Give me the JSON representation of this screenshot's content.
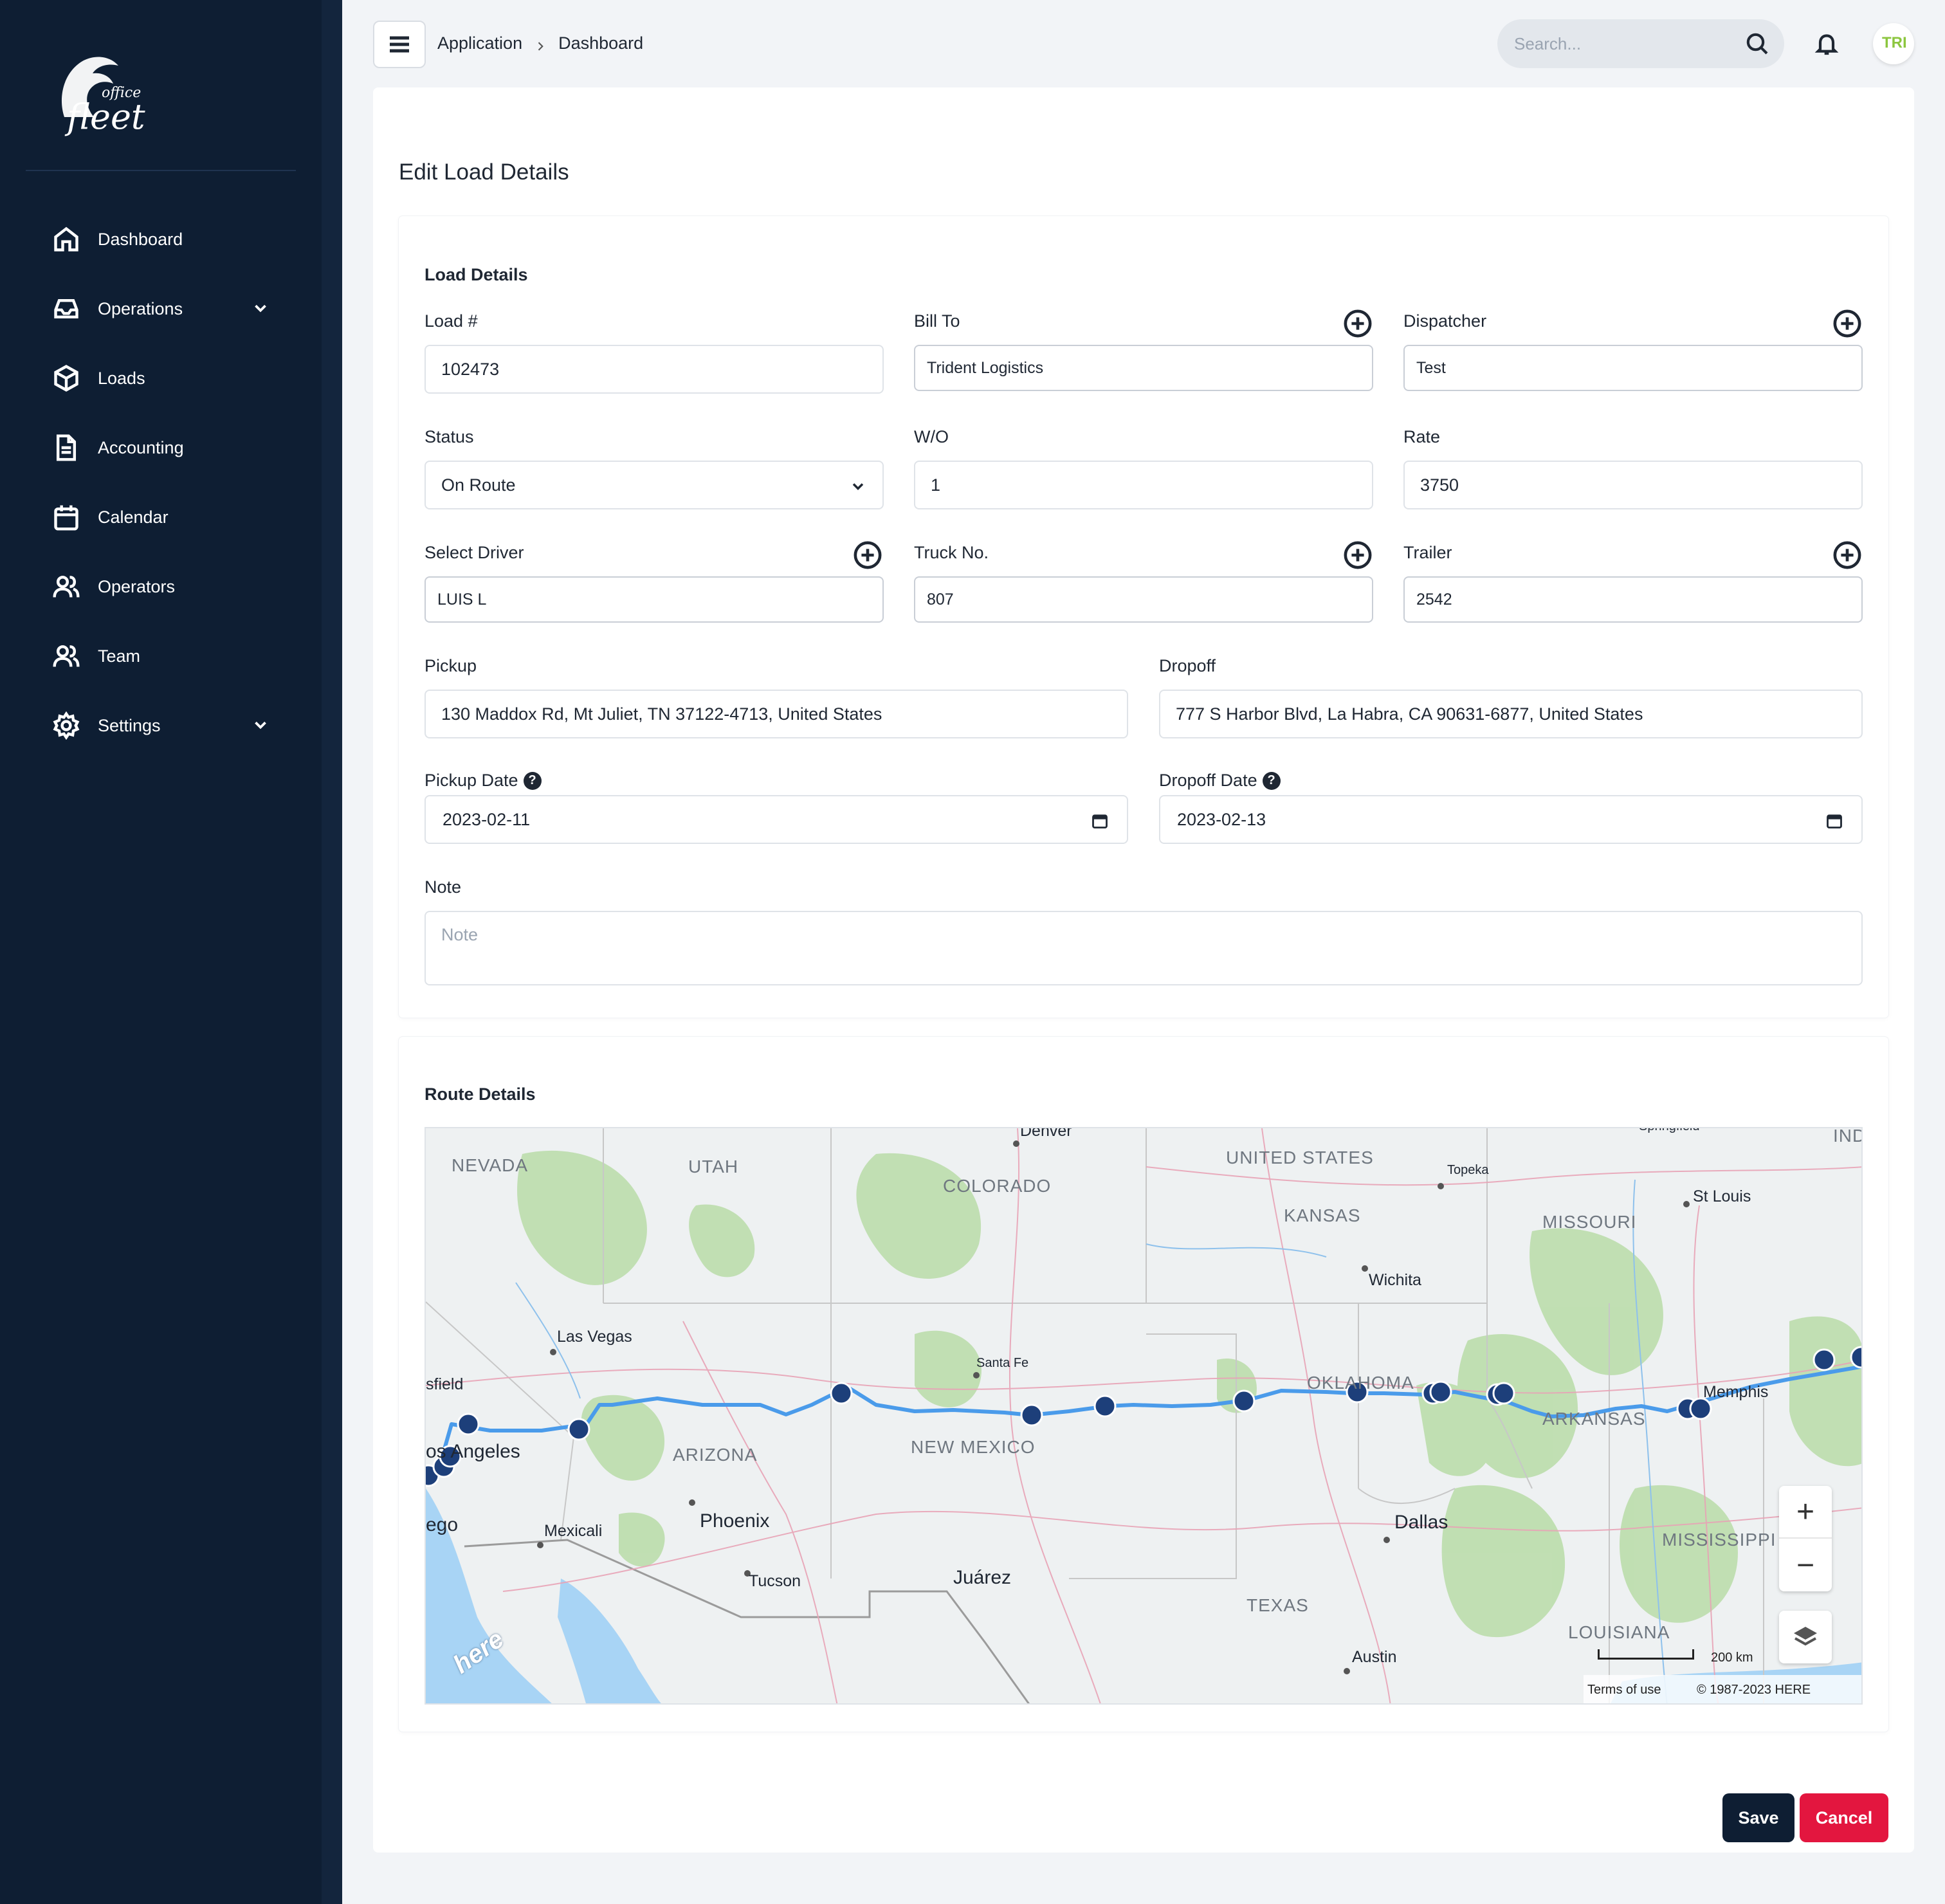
{
  "app": {
    "logo_small": "office",
    "logo_main": "fleet"
  },
  "sidebar": {
    "items": [
      {
        "label": "Dashboard",
        "icon": "home-icon",
        "has_chevron": false
      },
      {
        "label": "Operations",
        "icon": "inbox-icon",
        "has_chevron": true
      },
      {
        "label": "Loads",
        "icon": "box-icon",
        "has_chevron": false
      },
      {
        "label": "Accounting",
        "icon": "document-icon",
        "has_chevron": false
      },
      {
        "label": "Calendar",
        "icon": "calendar-icon",
        "has_chevron": false
      },
      {
        "label": "Operators",
        "icon": "users-icon",
        "has_chevron": false
      },
      {
        "label": "Team",
        "icon": "users-icon",
        "has_chevron": false
      },
      {
        "label": "Settings",
        "icon": "gear-icon",
        "has_chevron": true
      }
    ]
  },
  "header": {
    "breadcrumb": [
      "Application",
      "Dashboard"
    ],
    "search_placeholder": "Search...",
    "avatar_text": "TRI"
  },
  "page": {
    "title": "Edit Load Details"
  },
  "load_details": {
    "section_title": "Load Details",
    "load_no": {
      "label": "Load #",
      "value": "102473"
    },
    "bill_to": {
      "label": "Bill To",
      "value": "Trident Logistics"
    },
    "dispatcher": {
      "label": "Dispatcher",
      "value": "Test"
    },
    "status": {
      "label": "Status",
      "value": "On Route"
    },
    "wo": {
      "label": "W/O",
      "value": "1"
    },
    "rate": {
      "label": "Rate",
      "value": "3750"
    },
    "driver": {
      "label": "Select Driver",
      "value": "LUIS L"
    },
    "truck": {
      "label": "Truck No.",
      "value": "807"
    },
    "trailer": {
      "label": "Trailer",
      "value": "2542"
    },
    "pickup": {
      "label": "Pickup",
      "value": "130 Maddox Rd, Mt Juliet, TN 37122-4713, United States"
    },
    "dropoff": {
      "label": "Dropoff",
      "value": "777 S Harbor Blvd, La Habra, CA 90631-6877, United States"
    },
    "pickup_date": {
      "label": "Pickup Date",
      "value": "2023-02-11"
    },
    "dropoff_date": {
      "label": "Dropoff Date",
      "value": "2023-02-13"
    },
    "note": {
      "label": "Note",
      "placeholder": "Note",
      "value": ""
    }
  },
  "route": {
    "section_title": "Route Details",
    "map": {
      "regions": [
        "NEVADA",
        "UTAH",
        "COLORADO",
        "UNITED STATES",
        "KANSAS",
        "MISSOURI",
        "ARIZONA",
        "NEW MEXICO",
        "OKLAHOMA",
        "ARKANSAS",
        "TEXAS",
        "MISSISSIPPI",
        "LOUISIANA",
        "IND"
      ],
      "cities": [
        "Denver",
        "Topeka",
        "St Louis",
        "Springfield",
        "Wichita",
        "Las Vegas",
        "Santa Fe",
        "sfield",
        "os Angeles",
        "Phoenix",
        "Mexicali",
        "ego",
        "Tucson",
        "Juárez",
        "Dallas",
        "Memphis",
        "Austin"
      ],
      "scale_label": "200 km",
      "terms": "Terms of use",
      "copyright": "© 1987-2023 HERE",
      "brand": "here",
      "route_color": "#4a9bea",
      "marker_color": "#1d3f7a"
    }
  },
  "footer": {
    "save_label": "Save",
    "cancel_label": "Cancel"
  },
  "colors": {
    "sidebar_bg": "#0e1e33",
    "accent_save": "#0e1e33",
    "accent_cancel": "#e3163f",
    "avatar_text": "#8cc63f"
  }
}
